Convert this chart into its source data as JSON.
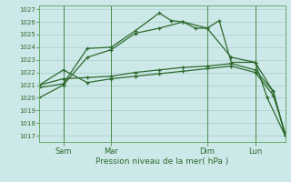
{
  "background_color": "#cde8e8",
  "grid_color": "#a8cece",
  "line_color": "#2d6a2d",
  "xlabel": "Pression niveau de la mer( hPa )",
  "ylim_min": 1016.5,
  "ylim_max": 1027.3,
  "yticks": [
    1017,
    1018,
    1019,
    1020,
    1021,
    1022,
    1023,
    1024,
    1025,
    1026,
    1027
  ],
  "xtick_labels": [
    "Sam",
    "Mar",
    "Dim",
    "Lun"
  ],
  "xtick_positions": [
    8,
    24,
    56,
    72
  ],
  "xlim_min": 0,
  "xlim_max": 82,
  "vlines": [
    8,
    24,
    56,
    72
  ],
  "series1_x": [
    0,
    8,
    16,
    24,
    32,
    40,
    44,
    48,
    52,
    56,
    60,
    64,
    72,
    76,
    82
  ],
  "series1_y": [
    1020.8,
    1021.1,
    1023.9,
    1024.0,
    1025.3,
    1026.7,
    1026.1,
    1026.0,
    1025.5,
    1025.5,
    1026.1,
    1022.8,
    1022.8,
    1020.0,
    1017.0
  ],
  "series2_x": [
    0,
    8,
    16,
    24,
    32,
    40,
    48,
    56,
    64,
    72,
    78,
    82
  ],
  "series2_y": [
    1021.0,
    1021.5,
    1021.6,
    1021.7,
    1022.0,
    1022.2,
    1022.4,
    1022.5,
    1022.7,
    1022.2,
    1020.5,
    1017.1
  ],
  "series3_x": [
    0,
    8,
    16,
    24,
    32,
    40,
    48,
    56,
    64,
    72,
    78,
    82
  ],
  "series3_y": [
    1020.0,
    1021.0,
    1023.2,
    1023.8,
    1025.1,
    1025.5,
    1026.0,
    1025.5,
    1023.2,
    1022.8,
    1020.5,
    1017.0
  ],
  "series4_x": [
    0,
    8,
    16,
    24,
    32,
    40,
    48,
    56,
    64,
    72,
    78,
    82
  ],
  "series4_y": [
    1021.0,
    1022.2,
    1021.2,
    1021.5,
    1021.7,
    1021.9,
    1022.1,
    1022.3,
    1022.5,
    1022.0,
    1020.2,
    1017.2
  ]
}
